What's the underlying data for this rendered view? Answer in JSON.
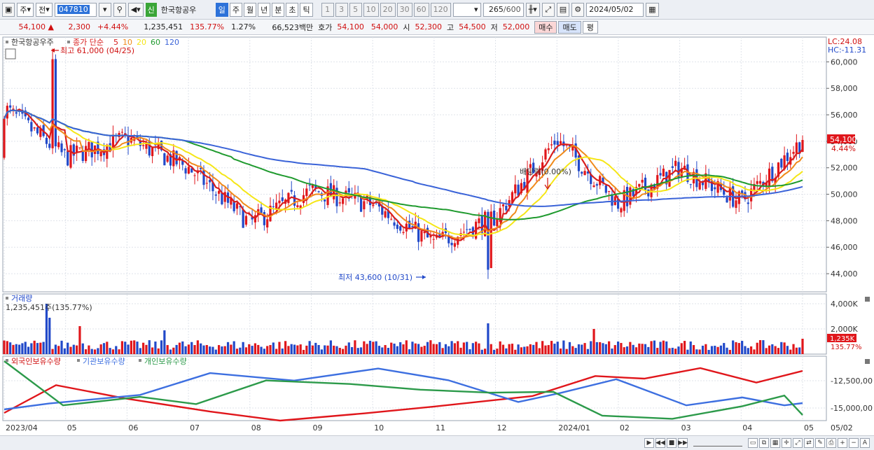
{
  "toolbar": {
    "period_type": "주",
    "prev_label": "전",
    "stock_code": "047810",
    "new_badge": "신",
    "stock_name": "한국항공우",
    "periods": [
      {
        "label": "일",
        "selected": true
      },
      {
        "label": "주",
        "selected": false
      },
      {
        "label": "월",
        "selected": false
      },
      {
        "label": "년",
        "selected": false
      },
      {
        "label": "분",
        "selected": false
      },
      {
        "label": "초",
        "selected": false
      },
      {
        "label": "틱",
        "selected": false
      }
    ],
    "intervals": [
      "1",
      "3",
      "5",
      "10",
      "20",
      "30",
      "60",
      "120"
    ],
    "count": "265",
    "count_max": "/600",
    "date": "2024/05/02"
  },
  "quote": {
    "price": "54,100",
    "direction_icon": "up-triangle",
    "change": "2,300",
    "change_pct": "+4.44%",
    "volume": "1,235,451",
    "volume_ratio": "135.77%",
    "turnover": "1.27%",
    "amount": "66,523백만",
    "bid_label": "호가",
    "bid": "54,100",
    "ask": "54,000",
    "open_label": "시",
    "open": "52,300",
    "high_label": "고",
    "high": "54,500",
    "low_label": "저",
    "low": "52,000",
    "buy_label": "매수",
    "sell_label": "매도",
    "avg_label": "평"
  },
  "price_panel": {
    "title": "한국항공우주",
    "legend_main": "종가 단순",
    "ma_periods": [
      "5",
      "10",
      "20",
      "60",
      "120"
    ],
    "lc": "LC:24.08",
    "hc": "HC:-11.31",
    "y_ticks": [
      "60,000",
      "58,000",
      "56,000",
      "54,000",
      "52,000",
      "50,000",
      "48,000",
      "46,000",
      "44,000"
    ],
    "last_price": "54,100",
    "last_pct": "4.44%",
    "high_note": "최고 61,000 (04/25)",
    "low_note": "최저 43,600 (10/31)",
    "dividend_note": "배당락(0.00%)"
  },
  "volume_panel": {
    "title": "거래량",
    "value": "1,235,451주(135.77%)",
    "y_ticks": [
      "4,000K",
      "2,000K"
    ],
    "last_value": "1,235K",
    "last_pct": "135.77%"
  },
  "holdings_panel": {
    "legend": [
      "외국인보유수량",
      "기관보유수량",
      "개인보유수량"
    ],
    "y_ticks": [
      "-12,500,00",
      "-15,000,00"
    ]
  },
  "x_axis": {
    "labels": [
      "2023/04",
      "05",
      "06",
      "07",
      "08",
      "09",
      "10",
      "11",
      "12",
      "2024/01",
      "02",
      "03",
      "04",
      "05"
    ],
    "right_label": "05/02"
  },
  "colors": {
    "up": "#e0161b",
    "down": "#2149c9",
    "ma5": "#d81e1e",
    "ma10": "#f08a1a",
    "ma20": "#f5e617",
    "ma60": "#1f9a2e",
    "ma120": "#3a63d8",
    "foreign": "#e0161b",
    "institution": "#3d6fe0",
    "individual": "#2c9a4a"
  },
  "chart_data": {
    "type": "candlestick",
    "y_range": [
      43000,
      61500
    ],
    "monthly_closes": [
      {
        "month": "2023/04",
        "close": 56500
      },
      {
        "month": "05",
        "close": 52800
      },
      {
        "month": "06",
        "close": 54200
      },
      {
        "month": "07",
        "close": 52000
      },
      {
        "month": "08",
        "close": 47800
      },
      {
        "month": "09",
        "close": 50300
      },
      {
        "month": "10",
        "close": 49200
      },
      {
        "month": "11",
        "close": 46300
      },
      {
        "month": "12",
        "close": 48300
      },
      {
        "month": "2024/01",
        "close": 54200
      },
      {
        "month": "02",
        "close": 49300
      },
      {
        "month": "03",
        "close": 52000
      },
      {
        "month": "04",
        "close": 49400
      },
      {
        "month": "05",
        "close": 54100
      }
    ],
    "high": {
      "value": 61000,
      "date": "04/25"
    },
    "low": {
      "value": 43600,
      "date": "10/31"
    }
  }
}
